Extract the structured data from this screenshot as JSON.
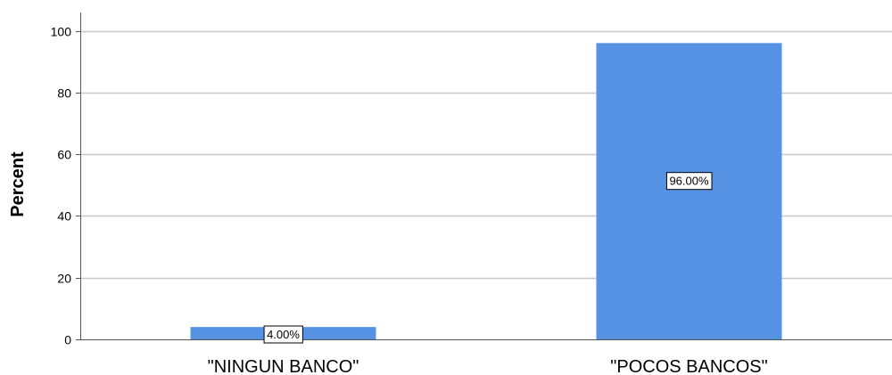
{
  "chart_data": {
    "type": "bar",
    "title": "",
    "xlabel": "",
    "ylabel": "Percent",
    "ylim": [
      0,
      105
    ],
    "yticks": [
      0,
      20,
      40,
      60,
      80,
      100
    ],
    "grid": true,
    "categories": [
      "\"NINGUN BANCO\"",
      "\"POCOS BANCOS\""
    ],
    "values": [
      4.0,
      96.0
    ],
    "data_labels": [
      "4.00%",
      "96.00%"
    ],
    "colors": {
      "bar": "#5592E3",
      "grid": "#C8C8C8",
      "axis": "#555555"
    }
  }
}
